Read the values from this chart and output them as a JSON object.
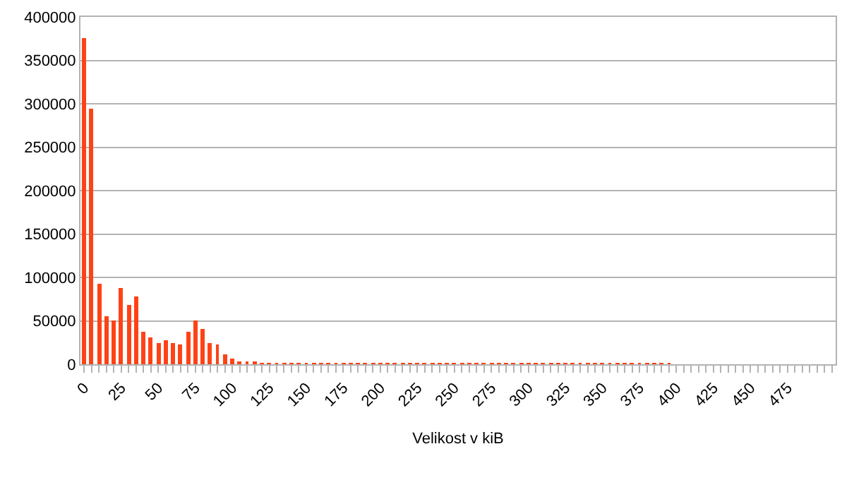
{
  "chart_data": {
    "type": "bar",
    "xlabel": "Velikost v kiB",
    "categories": [
      "0",
      null,
      null,
      null,
      null,
      "25",
      null,
      null,
      null,
      null,
      "50",
      null,
      null,
      null,
      null,
      "75",
      null,
      null,
      null,
      null,
      "100",
      null,
      null,
      null,
      null,
      "125",
      null,
      null,
      null,
      null,
      "150",
      null,
      null,
      null,
      null,
      "175",
      null,
      null,
      null,
      null,
      "200",
      null,
      null,
      null,
      null,
      "225",
      null,
      null,
      null,
      null,
      "250",
      null,
      null,
      null,
      null,
      "275",
      null,
      null,
      null,
      null,
      "300",
      null,
      null,
      null,
      null,
      "325",
      null,
      null,
      null,
      null,
      "350",
      null,
      null,
      null,
      null,
      "375",
      null,
      null,
      null,
      null,
      "400",
      null,
      null,
      null,
      null,
      "425",
      null,
      null,
      null,
      null,
      "450",
      null,
      null,
      null,
      null,
      "475",
      null,
      null,
      null,
      null,
      null,
      null
    ],
    "values": [
      375000,
      294000,
      93500,
      55400,
      50500,
      88200,
      68800,
      78500,
      37600,
      30100,
      24700,
      26900,
      23700,
      22600,
      37600,
      50000,
      40900,
      24700,
      22000,
      11800,
      7000,
      3800,
      3200,
      2200,
      1600,
      1600,
      1000,
      1000,
      800,
      700,
      600,
      500,
      400,
      400,
      300,
      300,
      300,
      200,
      200,
      200,
      200,
      200,
      200,
      200,
      100,
      100,
      100,
      100,
      100,
      100,
      100,
      100,
      100,
      100,
      100,
      100,
      100,
      100,
      100,
      100,
      100,
      100,
      100,
      100,
      100,
      100,
      100,
      100,
      100,
      100,
      100,
      100,
      100,
      100,
      100,
      100,
      100,
      100,
      100,
      100,
      null,
      null,
      null,
      null,
      null,
      null,
      null,
      null,
      null,
      null,
      null,
      null,
      null,
      null,
      null,
      null,
      null,
      null,
      null,
      null,
      null,
      null
    ],
    "color": "#ff4216",
    "ylim": [
      0,
      400000
    ],
    "yticks": [
      0,
      50000,
      100000,
      150000,
      200000,
      250000,
      300000,
      350000,
      400000
    ],
    "grid": "y"
  }
}
